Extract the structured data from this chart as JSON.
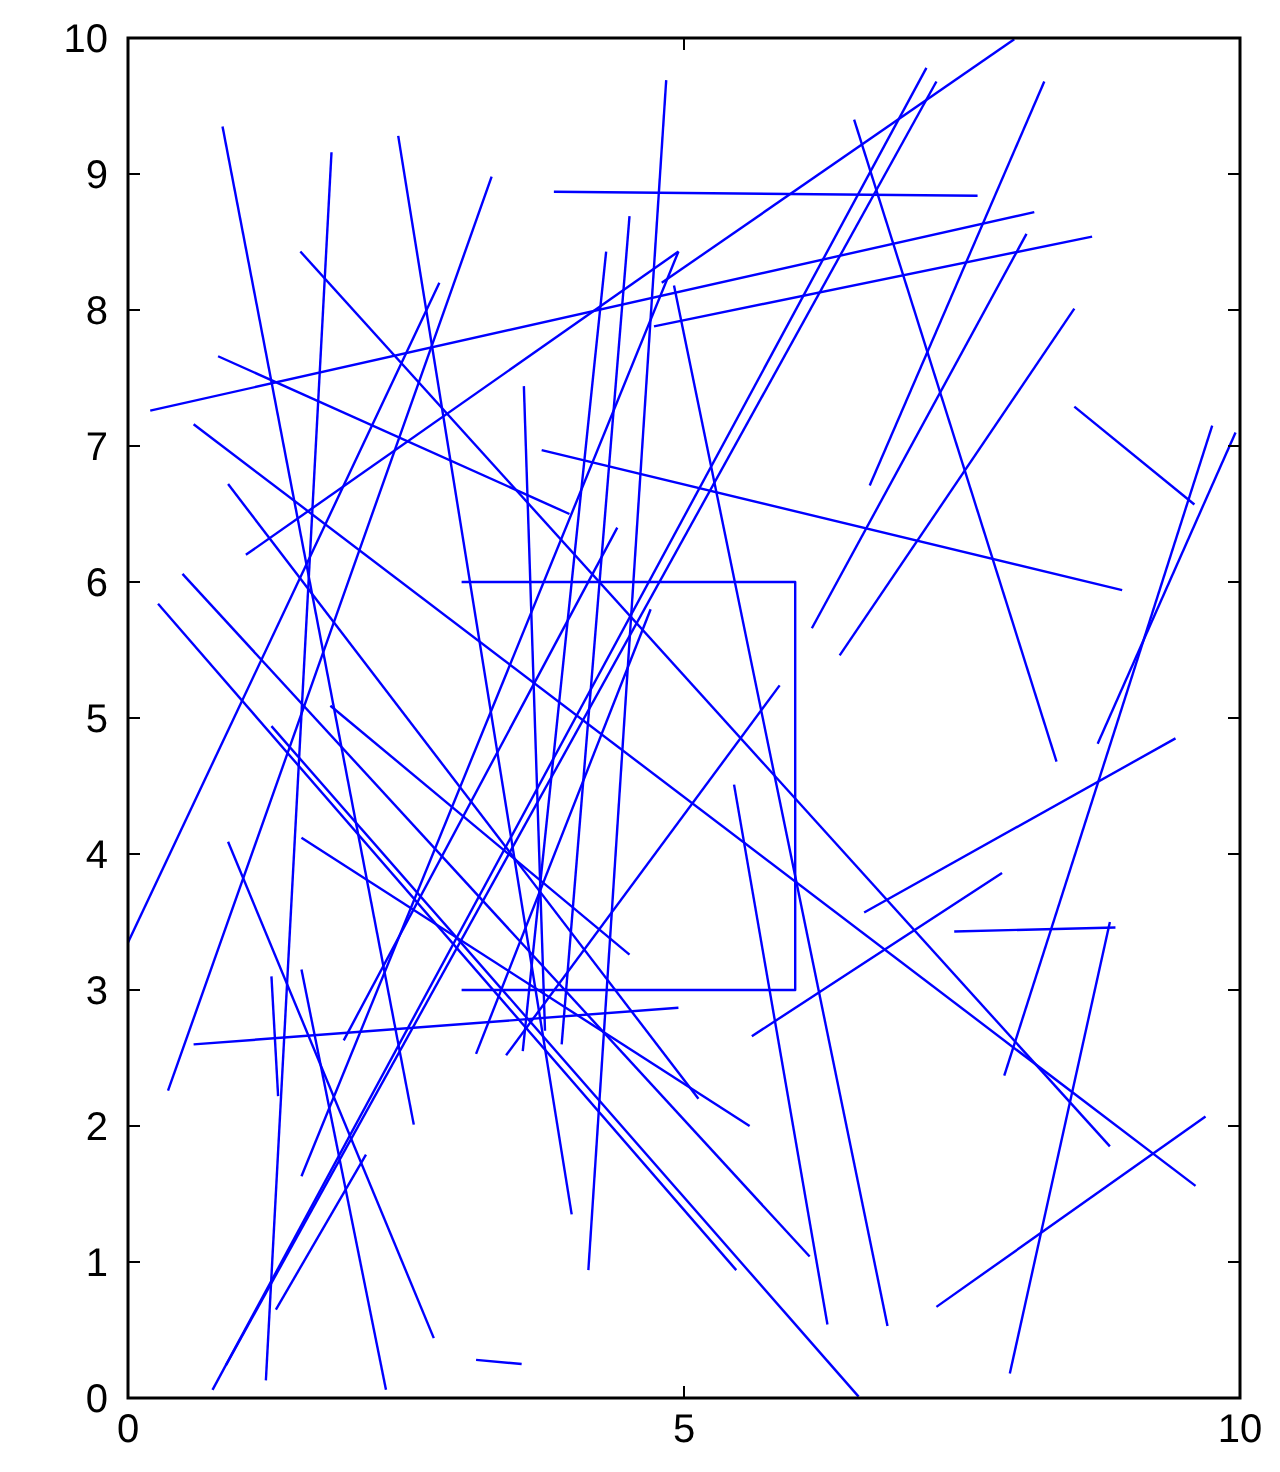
{
  "chart_data": {
    "type": "line",
    "xlim": [
      0,
      10
    ],
    "ylim": [
      0,
      10
    ],
    "xticks": [
      0,
      5,
      10
    ],
    "yticks": [
      0,
      1,
      2,
      3,
      4,
      5,
      6,
      7,
      8,
      9,
      10
    ],
    "grid": false,
    "marker": "none",
    "line_style": "solid",
    "series": [
      {
        "color": "#0000ff",
        "x": [
          0.85,
          2.57
        ],
        "values": [
          9.35,
          2.01
        ]
      },
      {
        "color": "#0000ff",
        "x": [
          1.83,
          1.24
        ],
        "values": [
          9.16,
          0.13
        ]
      },
      {
        "color": "#0000ff",
        "x": [
          2.43,
          3.99
        ],
        "values": [
          9.28,
          1.35
        ]
      },
      {
        "color": "#0000ff",
        "x": [
          0.36,
          3.27
        ],
        "values": [
          2.26,
          8.98
        ]
      },
      {
        "color": "#0000ff",
        "x": [
          0.2,
          8.15
        ],
        "values": [
          7.26,
          8.72
        ]
      },
      {
        "color": "#0000ff",
        "x": [
          1.06,
          4.95
        ],
        "values": [
          6.2,
          8.43
        ]
      },
      {
        "color": "#0000ff",
        "x": [
          1.55,
          8.83
        ],
        "values": [
          8.43,
          1.85
        ]
      },
      {
        "color": "#0000ff",
        "x": [
          0.81,
          3.97
        ],
        "values": [
          7.66,
          6.5
        ]
      },
      {
        "color": "#0000ff",
        "x": [
          0.59,
          9.6
        ],
        "values": [
          7.16,
          1.56
        ]
      },
      {
        "color": "#0000ff",
        "x": [
          0.9,
          5.13
        ],
        "values": [
          6.72,
          2.2
        ]
      },
      {
        "color": "#0000ff",
        "x": [
          0.27,
          5.47
        ],
        "values": [
          5.84,
          0.94
        ]
      },
      {
        "color": "#0000ff",
        "x": [
          0.49,
          6.13
        ],
        "values": [
          6.06,
          1.04
        ]
      },
      {
        "color": "#0000ff",
        "x": [
          4.84,
          4.14
        ],
        "values": [
          9.69,
          0.94
        ]
      },
      {
        "color": "#0000ff",
        "x": [
          4.51,
          3.9
        ],
        "values": [
          8.69,
          2.6
        ]
      },
      {
        "color": "#0000ff",
        "x": [
          4.3,
          3.55
        ],
        "values": [
          8.43,
          2.55
        ]
      },
      {
        "color": "#0000ff",
        "x": [
          3.56,
          3.75
        ],
        "values": [
          7.44,
          2.7
        ]
      },
      {
        "color": "#0000ff",
        "x": [
          3.72,
          8.94
        ],
        "values": [
          6.97,
          5.94
        ]
      },
      {
        "color": "#0000ff",
        "x": [
          3.83,
          7.64
        ],
        "values": [
          8.87,
          8.84
        ]
      },
      {
        "color": "#0000ff",
        "x": [
          3,
          6,
          6,
          3
        ],
        "values": [
          6,
          6,
          3,
          3
        ]
      },
      {
        "color": "#0000ff",
        "x": [
          7.97,
          4.8
        ],
        "values": [
          9.99,
          8.2
        ]
      },
      {
        "color": "#0000ff",
        "x": [
          7.18,
          0.76
        ],
        "values": [
          9.78,
          0.06
        ]
      },
      {
        "color": "#0000ff",
        "x": [
          7.27,
          0.88
        ],
        "values": [
          9.68,
          0.24
        ]
      },
      {
        "color": "#0000ff",
        "x": [
          6.53,
          8.35
        ],
        "values": [
          9.4,
          4.68
        ]
      },
      {
        "color": "#0000ff",
        "x": [
          8.24,
          6.67
        ],
        "values": [
          9.68,
          6.71
        ]
      },
      {
        "color": "#0000ff",
        "x": [
          8.08,
          6.15
        ],
        "values": [
          8.56,
          5.66
        ]
      },
      {
        "color": "#0000ff",
        "x": [
          8.51,
          6.4
        ],
        "values": [
          8.01,
          5.46
        ]
      },
      {
        "color": "#0000ff",
        "x": [
          4.73,
          8.67
        ],
        "values": [
          7.88,
          8.54
        ]
      },
      {
        "color": "#0000ff",
        "x": [
          4.91,
          6.83
        ],
        "values": [
          8.18,
          0.53
        ]
      },
      {
        "color": "#0000ff",
        "x": [
          8.51,
          9.59
        ],
        "values": [
          7.29,
          6.57
        ]
      },
      {
        "color": "#0000ff",
        "x": [
          9.75,
          7.88
        ],
        "values": [
          7.15,
          2.37
        ]
      },
      {
        "color": "#0000ff",
        "x": [
          9.96,
          8.72
        ],
        "values": [
          7.1,
          4.81
        ]
      },
      {
        "color": "#0000ff",
        "x": [
          7.93,
          8.83
        ],
        "values": [
          0.18,
          3.5
        ]
      },
      {
        "color": "#0000ff",
        "x": [
          7.43,
          8.88
        ],
        "values": [
          3.43,
          3.46
        ]
      },
      {
        "color": "#0000ff",
        "x": [
          6.62,
          9.42
        ],
        "values": [
          3.57,
          4.85
        ]
      },
      {
        "color": "#0000ff",
        "x": [
          5.61,
          7.86
        ],
        "values": [
          2.66,
          3.86
        ]
      },
      {
        "color": "#0000ff",
        "x": [
          7.27,
          9.69
        ],
        "values": [
          0.67,
          2.07
        ]
      },
      {
        "color": "#0000ff",
        "x": [
          5.45,
          6.29
        ],
        "values": [
          4.51,
          0.54
        ]
      },
      {
        "color": "#0000ff",
        "x": [
          1.29,
          6.57
        ],
        "values": [
          4.94,
          0.01
        ]
      },
      {
        "color": "#0000ff",
        "x": [
          1.56,
          5.59
        ],
        "values": [
          4.12,
          2.0
        ]
      },
      {
        "color": "#0000ff",
        "x": [
          1.82,
          4.51
        ],
        "values": [
          5.09,
          3.26
        ]
      },
      {
        "color": "#0000ff",
        "x": [
          0.9,
          2.75
        ],
        "values": [
          4.09,
          0.44
        ]
      },
      {
        "color": "#0000ff",
        "x": [
          1.29,
          1.35
        ],
        "values": [
          3.1,
          2.22
        ]
      },
      {
        "color": "#0000ff",
        "x": [
          1.56,
          2.32
        ],
        "values": [
          3.15,
          0.06
        ]
      },
      {
        "color": "#0000ff",
        "x": [
          0.59,
          4.95
        ],
        "values": [
          2.6,
          2.87
        ]
      },
      {
        "color": "#0000ff",
        "x": [
          1.94,
          4.4
        ],
        "values": [
          2.63,
          6.4
        ]
      },
      {
        "color": "#0000ff",
        "x": [
          1.33,
          2.14
        ],
        "values": [
          0.65,
          1.79
        ]
      },
      {
        "color": "#0000ff",
        "x": [
          1.56,
          4.95
        ],
        "values": [
          1.63,
          8.43
        ]
      },
      {
        "color": "#0000ff",
        "x": [
          3.13,
          3.54
        ],
        "values": [
          0.28,
          0.25
        ]
      },
      {
        "color": "#0000ff",
        "x": [
          3.13,
          4.7
        ],
        "values": [
          2.53,
          5.8
        ]
      },
      {
        "color": "#0000ff",
        "x": [
          3.4,
          5.86
        ],
        "values": [
          2.52,
          5.24
        ]
      },
      {
        "color": "#0000ff",
        "x": [
          0,
          2.8
        ],
        "values": [
          3.35,
          8.2
        ]
      }
    ]
  }
}
